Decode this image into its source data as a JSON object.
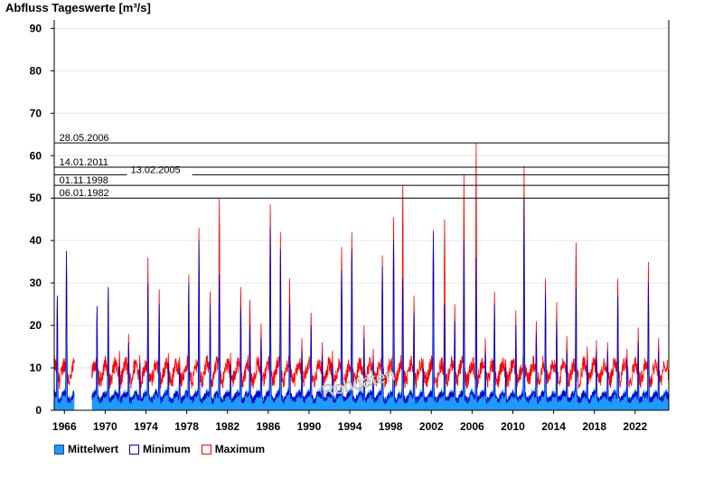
{
  "chart_data": {
    "type": "area",
    "title": "Abfluss Tageswerte [m³/s]",
    "ylim": [
      0,
      92
    ],
    "yticks": [
      0,
      10,
      20,
      30,
      40,
      50,
      60,
      70,
      80,
      90
    ],
    "xlim": [
      1965.0,
      2025.3
    ],
    "xticks": [
      1966,
      1970,
      1974,
      1978,
      1982,
      1986,
      1990,
      1994,
      1998,
      2002,
      2006,
      2010,
      2014,
      2018,
      2022
    ],
    "grid": true,
    "legend_position": "bottom-left",
    "watermark": "Rohdaten",
    "gap": [
      1967.0,
      1968.7
    ],
    "colors": {
      "mean": "#1e9bff",
      "minimum": "#0000cc",
      "maximum": "#ff0000"
    },
    "reference_lines": [
      {
        "label": "28.05.2006",
        "value": 63.0,
        "label_year": 1965.5
      },
      {
        "label": "14.01.2011",
        "value": 57.3,
        "label_year": 1965.5
      },
      {
        "label": "13.02.2005",
        "value": 55.5,
        "label_year": 1972.5
      },
      {
        "label": "01.11.1998",
        "value": 53.0,
        "label_year": 1965.5
      },
      {
        "label": "06.01.1982",
        "value": 50.0,
        "label_year": 1965.5
      }
    ],
    "annual_peaks": {
      "years": [
        1965.3,
        1966.2,
        1969.2,
        1970.3,
        1971.4,
        1972.3,
        1973.4,
        1974.2,
        1975.3,
        1976.2,
        1977.3,
        1978.2,
        1979.2,
        1980.3,
        1981.2,
        1982.3,
        1983.3,
        1984.2,
        1985.3,
        1986.2,
        1987.2,
        1988.1,
        1989.3,
        1990.2,
        1991.3,
        1992.3,
        1993.2,
        1994.2,
        1995.4,
        1996.3,
        1997.2,
        1998.3,
        1999.2,
        2000.3,
        2001.2,
        2002.2,
        2003.3,
        2004.3,
        2005.2,
        2006.4,
        2007.3,
        2008.2,
        2009.3,
        2010.3,
        2011.1,
        2012.3,
        2013.2,
        2014.3,
        2015.3,
        2016.2,
        2017.3,
        2018.2,
        2019.3,
        2020.3,
        2021.2,
        2022.3,
        2023.3,
        2024.3
      ],
      "maximum": [
        27,
        37.5,
        24.5,
        29,
        14,
        18,
        13,
        36,
        28.5,
        13.5,
        12.5,
        32,
        43,
        28,
        50,
        13.5,
        29,
        26,
        20.5,
        48.5,
        42,
        31,
        17,
        23,
        16,
        14,
        38.5,
        42,
        20,
        14.5,
        36.5,
        45.5,
        53,
        27,
        12,
        42.5,
        45,
        25,
        55.5,
        63,
        17,
        28,
        12,
        23.5,
        57.5,
        21,
        31,
        25.5,
        17.5,
        39.5,
        15,
        16.5,
        16,
        31,
        14.5,
        19.5,
        35,
        17
      ],
      "minimum": [
        27,
        37.5,
        24.5,
        29,
        11,
        16,
        11,
        30,
        25,
        11,
        10,
        30,
        40,
        25,
        32,
        11,
        24,
        20,
        17,
        43,
        38,
        25,
        14,
        20,
        13,
        11,
        33,
        38,
        17,
        12,
        34,
        40,
        31,
        23,
        10,
        42,
        25,
        21,
        40,
        36,
        14,
        25,
        10,
        20,
        50,
        18,
        28,
        21,
        14,
        29,
        12,
        14,
        14,
        27,
        12,
        16,
        30,
        14
      ],
      "mean": [
        21,
        33,
        22,
        20,
        9,
        12,
        9,
        24,
        20,
        9,
        8,
        20,
        27,
        19,
        24,
        9,
        18,
        16,
        14,
        32,
        30,
        20,
        11,
        16,
        10,
        9,
        26,
        28,
        13,
        10,
        22,
        31,
        26,
        18,
        8,
        31,
        21,
        17,
        34,
        36,
        11,
        20,
        8,
        16,
        47,
        14,
        22,
        17,
        11,
        27,
        10,
        11,
        11,
        20,
        10,
        13,
        27,
        11
      ]
    }
  }
}
